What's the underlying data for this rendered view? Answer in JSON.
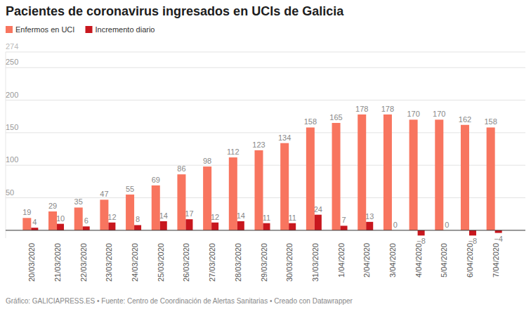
{
  "chart_data": {
    "type": "bar",
    "title": "Pacientes de coronavirus ingresados en UCIs de Galicia",
    "source": "Gráfico: GALICIAPRESS.ES • Fuente: Centro de Coordinación de Alertas Sanitarias • Creado con Datawrapper",
    "categories": [
      "20/03/2020",
      "21/03/2020",
      "22/03/2020",
      "23/03/2020",
      "24/03/2020",
      "25/03/2020",
      "26/03/2020",
      "27/03/2020",
      "28/03/2020",
      "29/03/2020",
      "30/03/2020",
      "31/03/2020",
      "1/04/2020",
      "2/04/2020",
      "3/04/2020",
      "4/04/2020",
      "5/04/2020",
      "6/04/2020",
      "7/04/2020"
    ],
    "series": [
      {
        "name": "Enfermos en UCI",
        "color": "#f8755f",
        "values": [
          19,
          29,
          35,
          47,
          55,
          69,
          86,
          98,
          112,
          123,
          134,
          158,
          165,
          178,
          178,
          170,
          170,
          162,
          158
        ]
      },
      {
        "name": "Incremento diario",
        "color": "#c8171e",
        "values": [
          4,
          10,
          6,
          12,
          8,
          14,
          17,
          12,
          14,
          11,
          11,
          24,
          7,
          13,
          0,
          -8,
          0,
          -8,
          -4
        ],
        "value_labels": [
          "4",
          "10",
          "6",
          "12",
          "8",
          "14",
          "17",
          "12",
          "14",
          "11",
          "11",
          "24",
          "7",
          "13",
          "0",
          "−8",
          "0",
          "−8",
          "−4"
        ]
      }
    ],
    "ylim": [
      -12,
      274
    ],
    "yticks": [
      50,
      100,
      150,
      200,
      250,
      274
    ],
    "grid": true,
    "legend": "top-left",
    "data_labels": true
  }
}
